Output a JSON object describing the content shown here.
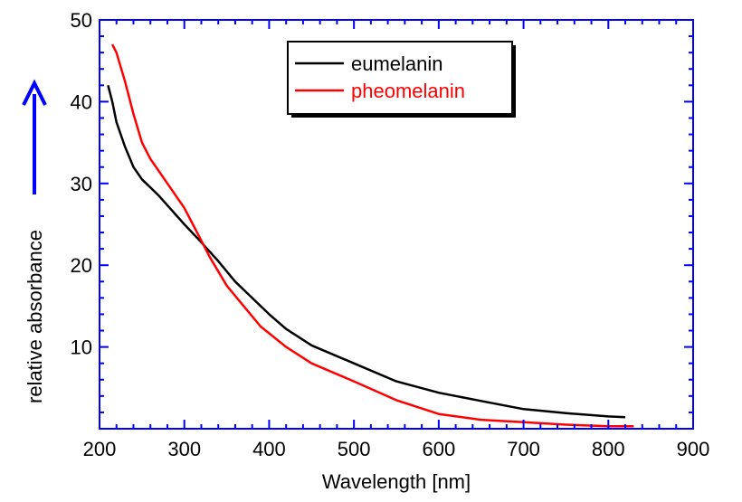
{
  "chart_data": {
    "type": "line",
    "xlabel": "Wavelength [nm]",
    "ylabel": "relative absorbance",
    "xlim": [
      200,
      900
    ],
    "ylim": [
      0,
      50
    ],
    "xticks": [
      200,
      300,
      400,
      500,
      600,
      700,
      800,
      900
    ],
    "yticks": [
      10,
      20,
      30,
      40,
      50
    ],
    "grid": false,
    "legend_position": "top-center",
    "colors": {
      "axis": "#0000ff",
      "ylabel": "#0000ff",
      "frame": "#000000"
    },
    "series": [
      {
        "name": "eumelanin",
        "color": "#000000",
        "points": [
          [
            210,
            42
          ],
          [
            215,
            40
          ],
          [
            220,
            37.5
          ],
          [
            230,
            34.5
          ],
          [
            240,
            32
          ],
          [
            250,
            30.5
          ],
          [
            270,
            28.5
          ],
          [
            300,
            25
          ],
          [
            320,
            22.8
          ],
          [
            340,
            20.5
          ],
          [
            360,
            18
          ],
          [
            380,
            16
          ],
          [
            400,
            14
          ],
          [
            420,
            12.2
          ],
          [
            450,
            10.2
          ],
          [
            500,
            8
          ],
          [
            550,
            5.8
          ],
          [
            600,
            4.4
          ],
          [
            650,
            3.4
          ],
          [
            700,
            2.4
          ],
          [
            750,
            1.9
          ],
          [
            800,
            1.5
          ],
          [
            820,
            1.4
          ]
        ]
      },
      {
        "name": "pheomelanin",
        "color": "#ff0000",
        "points": [
          [
            215,
            47
          ],
          [
            220,
            46
          ],
          [
            230,
            42.5
          ],
          [
            240,
            38.5
          ],
          [
            250,
            35
          ],
          [
            260,
            33
          ],
          [
            280,
            30
          ],
          [
            300,
            27
          ],
          [
            310,
            25
          ],
          [
            320,
            23
          ],
          [
            330,
            21
          ],
          [
            350,
            17.5
          ],
          [
            370,
            15
          ],
          [
            390,
            12.5
          ],
          [
            420,
            10
          ],
          [
            450,
            8
          ],
          [
            500,
            5.8
          ],
          [
            550,
            3.5
          ],
          [
            600,
            1.8
          ],
          [
            650,
            1.1
          ],
          [
            700,
            0.8
          ],
          [
            750,
            0.5
          ],
          [
            800,
            0.3
          ],
          [
            830,
            0.3
          ]
        ]
      }
    ]
  }
}
